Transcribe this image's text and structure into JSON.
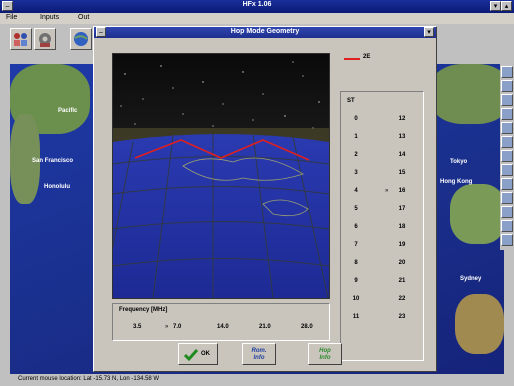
{
  "app": {
    "title": "HFx 1.06",
    "window_buttons": {
      "minimize": "▾",
      "maximize": "▴"
    }
  },
  "menu": {
    "items": [
      {
        "label": "File"
      },
      {
        "label": "Inputs"
      },
      {
        "label": "Out"
      }
    ]
  },
  "map": {
    "cities": [
      {
        "label": "Pacific"
      },
      {
        "label": "San Francisco"
      },
      {
        "label": "Honolulu"
      },
      {
        "label": "Tokyo"
      },
      {
        "label": "Hong Kong"
      },
      {
        "label": "Sydney"
      }
    ]
  },
  "status": {
    "text": "Current mouse location: Lat -15.73 N, Lon -134.58 W"
  },
  "dialog": {
    "title": "Hop Mode Geometry",
    "legend": {
      "label": "2E",
      "color": "#e02020"
    },
    "st": {
      "header": "ST",
      "left_column": [
        "0",
        "1",
        "2",
        "3",
        "4",
        "5",
        "6",
        "7",
        "8",
        "9",
        "10",
        "11"
      ],
      "right_column": [
        "12",
        "13",
        "14",
        "15",
        "16",
        "17",
        "18",
        "19",
        "20",
        "21",
        "22",
        "23"
      ],
      "selected_marker": "»",
      "selected_value": "16"
    },
    "frequency": {
      "label": "Frequency [MHz]",
      "values": [
        "3.5",
        "7.0",
        "14.0",
        "21.0",
        "28.0"
      ],
      "selected_marker": "»",
      "selected_value": "7.0"
    },
    "buttons": {
      "ok": "OK",
      "ok_icon": "checkmark-icon",
      "rom_info_line1": "Rom.",
      "rom_info_line2": "Info",
      "hop_info_line1": "Hop",
      "hop_info_line2": "Info"
    }
  }
}
